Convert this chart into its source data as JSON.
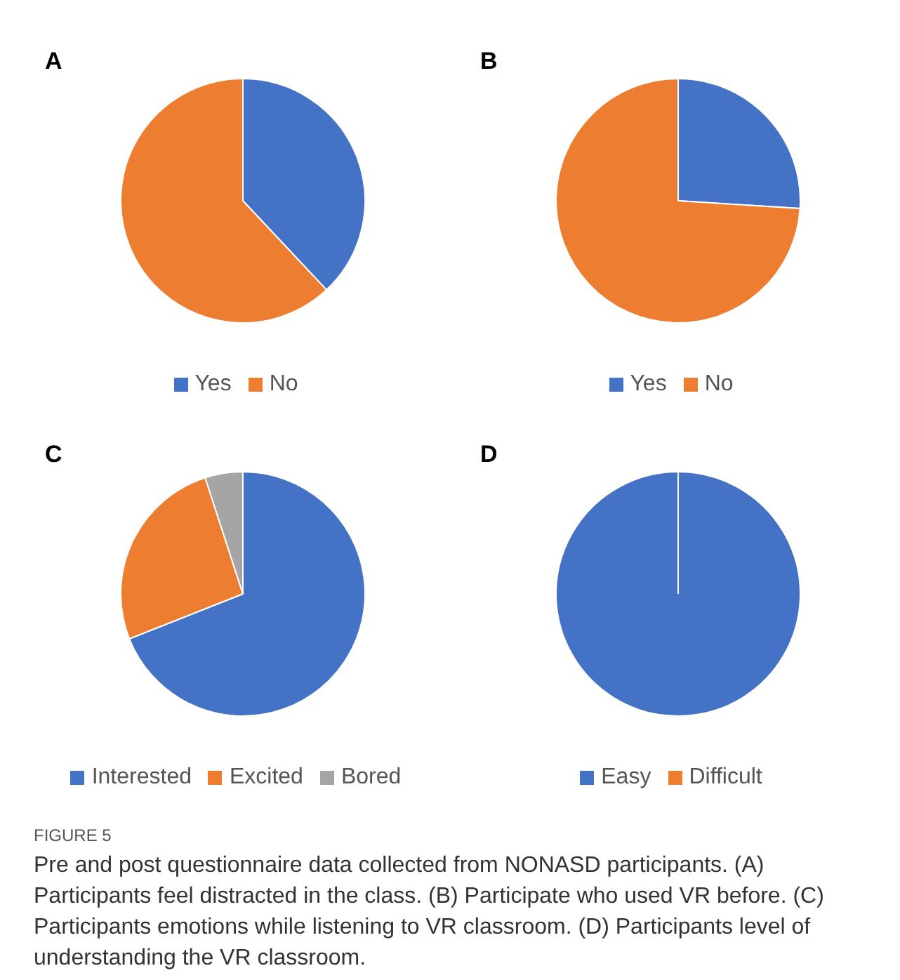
{
  "chart_data": [
    {
      "type": "pie",
      "title": "A",
      "categories": [
        "Yes",
        "No"
      ],
      "values": [
        38,
        62
      ],
      "colors": [
        "#4472c4",
        "#ed7d31"
      ],
      "legend": "bottom"
    },
    {
      "type": "pie",
      "title": "B",
      "categories": [
        "Yes",
        "No"
      ],
      "values": [
        26,
        74
      ],
      "colors": [
        "#4472c4",
        "#ed7d31"
      ],
      "legend": "bottom"
    },
    {
      "type": "pie",
      "title": "C",
      "categories": [
        "Interested",
        "Excited",
        "Bored"
      ],
      "values": [
        69,
        26,
        5
      ],
      "colors": [
        "#4472c4",
        "#ed7d31",
        "#a5a5a5"
      ],
      "legend": "bottom"
    },
    {
      "type": "pie",
      "title": "D",
      "categories": [
        "Easy",
        "Difficult"
      ],
      "values": [
        100,
        0
      ],
      "colors": [
        "#4472c4",
        "#ed7d31"
      ],
      "legend": "bottom",
      "annotations": [
        "FIGURE 5",
        "Pre and post questionnaire data collected from NONASD participants. (A) Participants feel distracted in the class. (B) Participate who used VR before. (C) Participants emotions while listening to VR classroom. (D) Participants level of understanding the VR classroom."
      ]
    }
  ]
}
